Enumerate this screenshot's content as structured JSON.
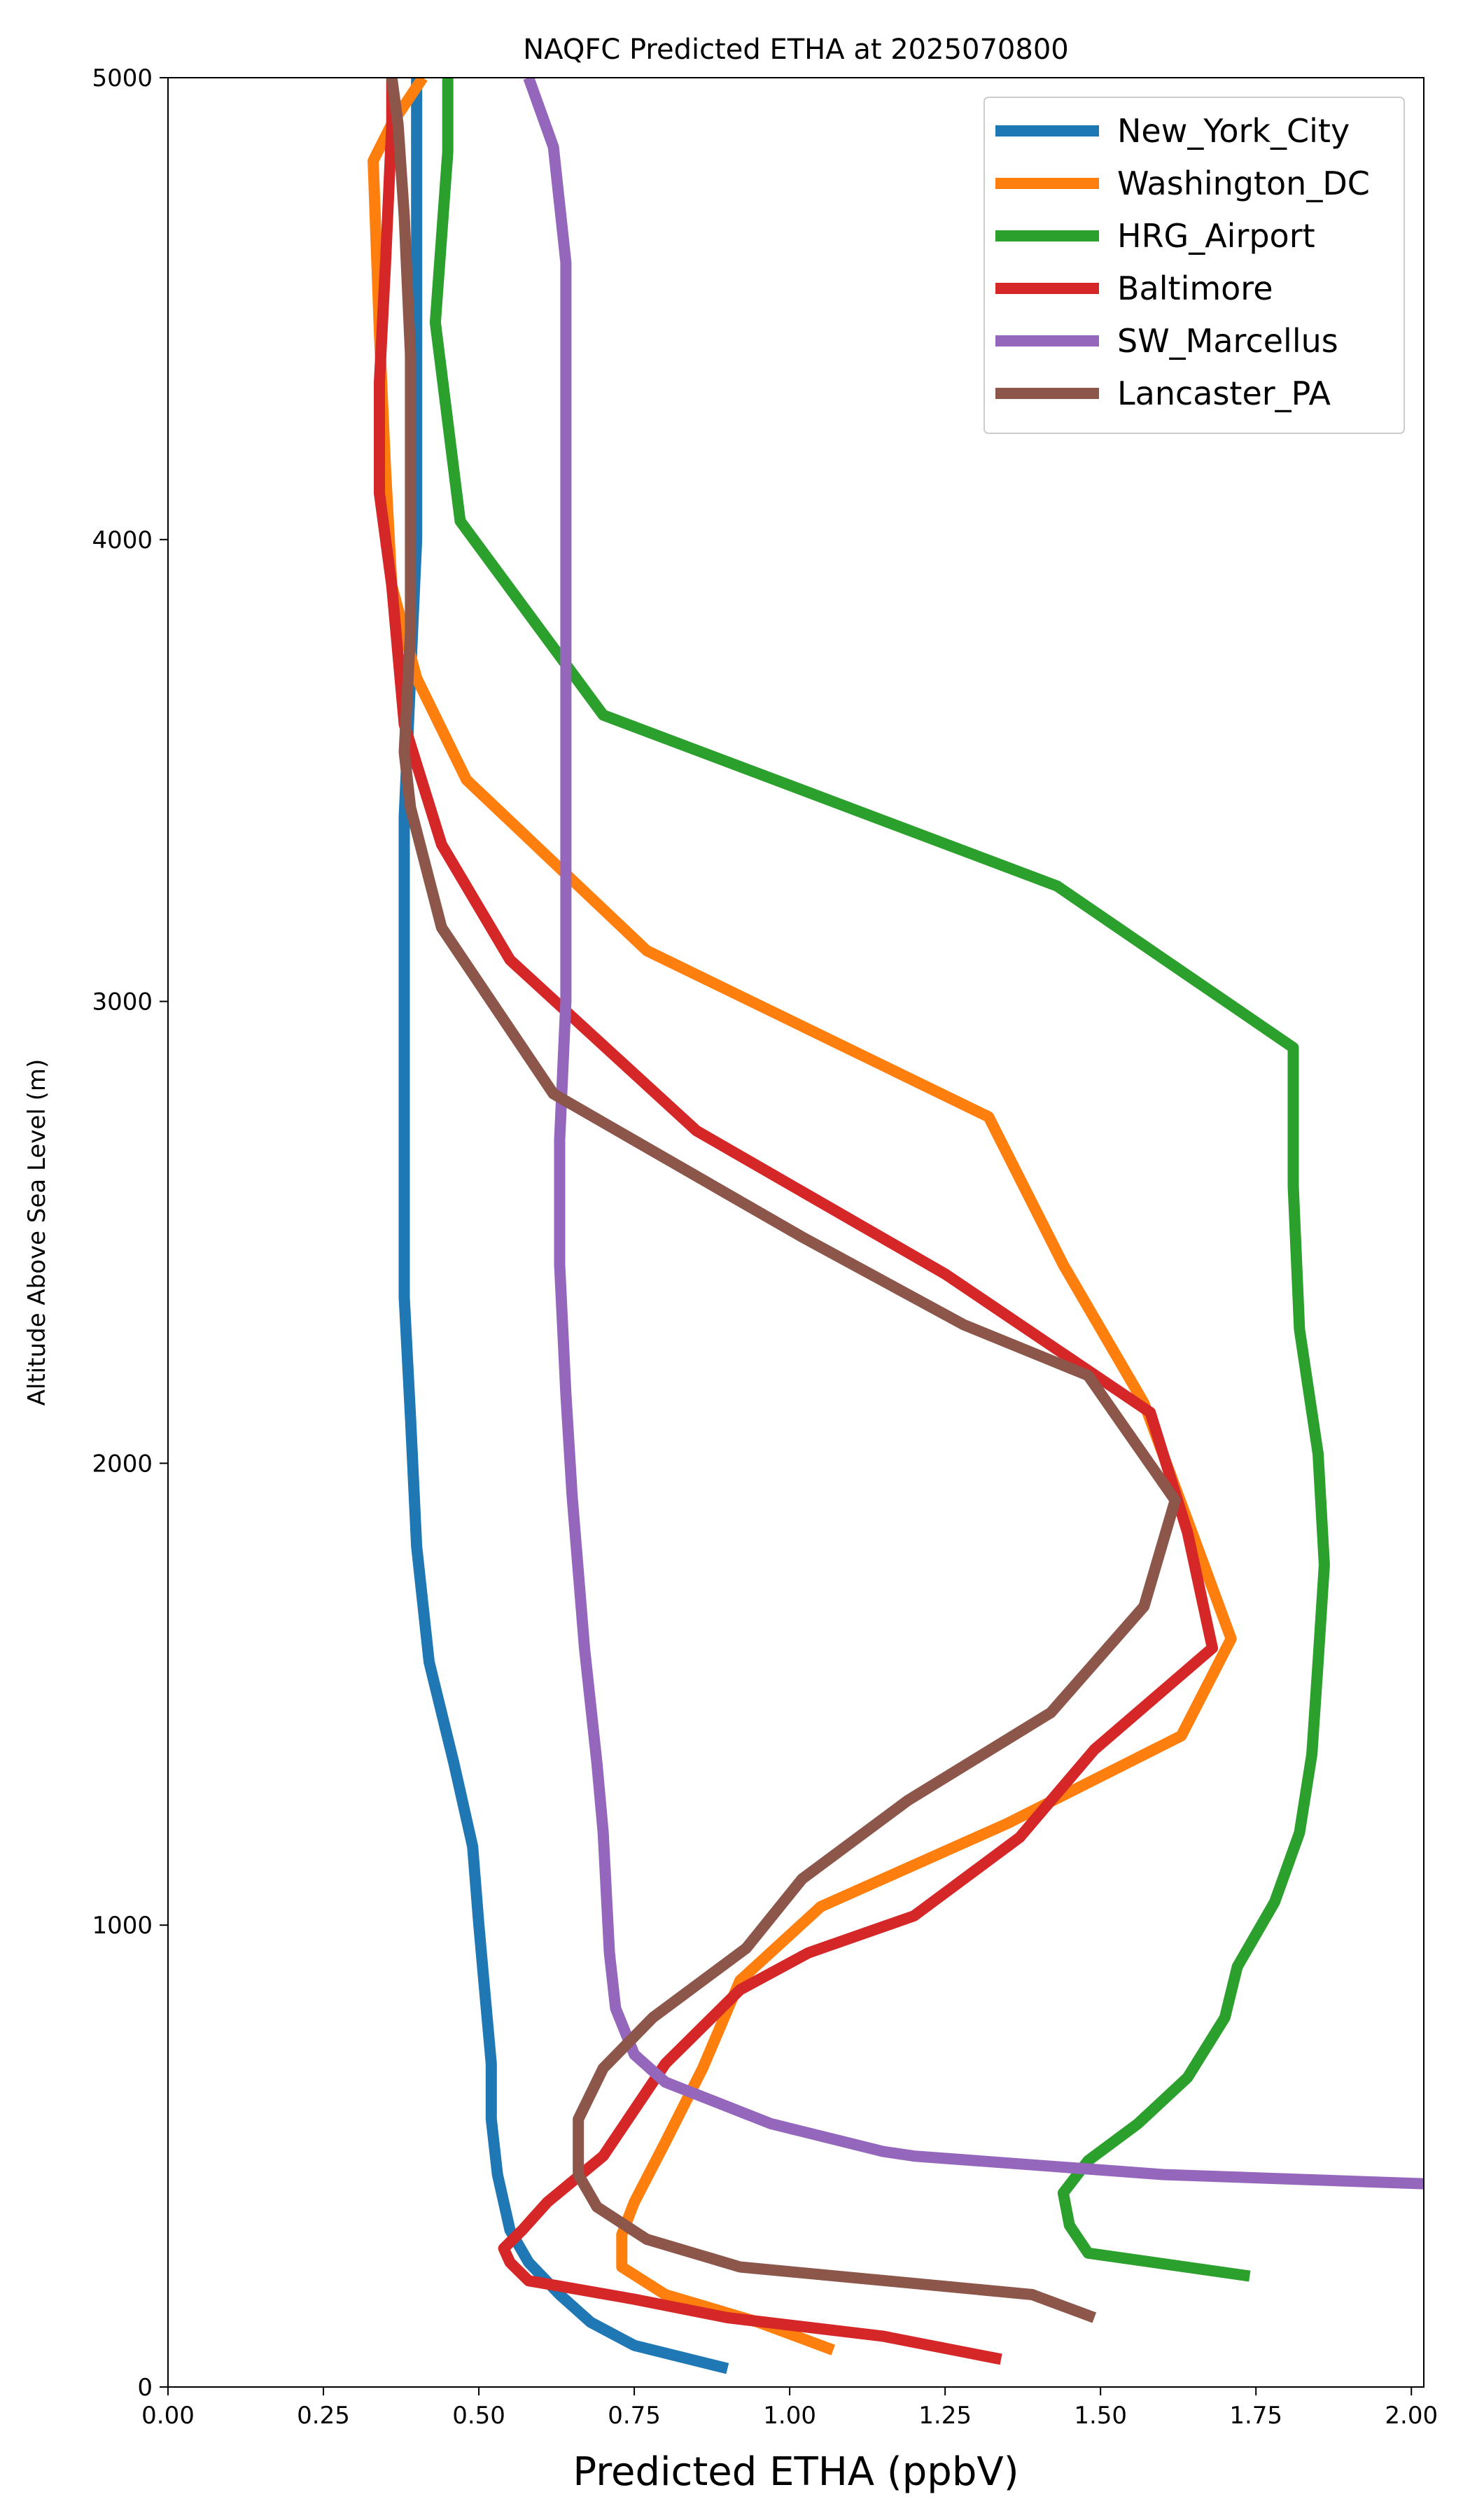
{
  "chart_data": {
    "type": "line",
    "title": "NAQFC Predicted ETHA at 2025070800",
    "xlabel": "Predicted ETHA (ppbV)",
    "ylabel": "Altitude Above Sea Level (m)",
    "xlim": [
      0.0,
      2.02
    ],
    "ylim": [
      0,
      5000
    ],
    "xticks": [
      "0.00",
      "0.25",
      "0.50",
      "0.75",
      "1.00",
      "1.25",
      "1.50",
      "1.75",
      "2.00"
    ],
    "yticks": [
      "0",
      "1000",
      "2000",
      "3000",
      "4000",
      "5000"
    ],
    "grid": false,
    "legend_position": "top-right",
    "series": [
      {
        "name": "New_York_City",
        "color": "#1f77b4",
        "points": [
          [
            0.9,
            40
          ],
          [
            0.75,
            90
          ],
          [
            0.68,
            140
          ],
          [
            0.63,
            200
          ],
          [
            0.58,
            270
          ],
          [
            0.55,
            340
          ],
          [
            0.53,
            460
          ],
          [
            0.52,
            580
          ],
          [
            0.52,
            700
          ],
          [
            0.51,
            850
          ],
          [
            0.5,
            1000
          ],
          [
            0.49,
            1170
          ],
          [
            0.46,
            1350
          ],
          [
            0.42,
            1570
          ],
          [
            0.4,
            1820
          ],
          [
            0.39,
            2100
          ],
          [
            0.38,
            2360
          ],
          [
            0.38,
            2700
          ],
          [
            0.38,
            3050
          ],
          [
            0.38,
            3400
          ],
          [
            0.39,
            3700
          ],
          [
            0.4,
            4000
          ],
          [
            0.4,
            4300
          ],
          [
            0.4,
            4600
          ],
          [
            0.4,
            4850
          ],
          [
            0.4,
            5000
          ]
        ]
      },
      {
        "name": "Washington_DC",
        "color": "#ff7f0e",
        "points": [
          [
            1.07,
            80
          ],
          [
            0.95,
            140
          ],
          [
            0.8,
            200
          ],
          [
            0.73,
            260
          ],
          [
            0.73,
            330
          ],
          [
            0.75,
            400
          ],
          [
            0.8,
            530
          ],
          [
            0.86,
            690
          ],
          [
            0.92,
            880
          ],
          [
            1.05,
            1040
          ],
          [
            1.35,
            1220
          ],
          [
            1.63,
            1410
          ],
          [
            1.71,
            1620
          ],
          [
            1.65,
            1840
          ],
          [
            1.57,
            2130
          ],
          [
            1.44,
            2430
          ],
          [
            1.32,
            2750
          ],
          [
            0.77,
            3110
          ],
          [
            0.48,
            3480
          ],
          [
            0.4,
            3700
          ],
          [
            0.36,
            3900
          ],
          [
            0.35,
            4150
          ],
          [
            0.34,
            4450
          ],
          [
            0.33,
            4820
          ],
          [
            0.36,
            4900
          ],
          [
            0.41,
            5000
          ]
        ]
      },
      {
        "name": "HRG_Airport",
        "color": "#2ca02c",
        "points": [
          [
            1.74,
            240
          ],
          [
            1.48,
            290
          ],
          [
            1.45,
            350
          ],
          [
            1.44,
            420
          ],
          [
            1.48,
            490
          ],
          [
            1.56,
            570
          ],
          [
            1.64,
            670
          ],
          [
            1.7,
            800
          ],
          [
            1.72,
            910
          ],
          [
            1.78,
            1050
          ],
          [
            1.82,
            1200
          ],
          [
            1.84,
            1370
          ],
          [
            1.85,
            1570
          ],
          [
            1.86,
            1780
          ],
          [
            1.85,
            2020
          ],
          [
            1.82,
            2290
          ],
          [
            1.81,
            2600
          ],
          [
            1.81,
            2900
          ],
          [
            1.43,
            3250
          ],
          [
            0.7,
            3620
          ],
          [
            0.47,
            4040
          ],
          [
            0.43,
            4470
          ],
          [
            0.45,
            4840
          ],
          [
            0.45,
            5000
          ]
        ]
      },
      {
        "name": "Baltimore",
        "color": "#d62728",
        "points": [
          [
            1.34,
            60
          ],
          [
            1.15,
            110
          ],
          [
            0.9,
            150
          ],
          [
            0.75,
            190
          ],
          [
            0.58,
            230
          ],
          [
            0.55,
            270
          ],
          [
            0.54,
            300
          ],
          [
            0.57,
            340
          ],
          [
            0.61,
            400
          ],
          [
            0.7,
            500
          ],
          [
            0.75,
            600
          ],
          [
            0.8,
            700
          ],
          [
            0.92,
            860
          ],
          [
            1.03,
            940
          ],
          [
            1.2,
            1020
          ],
          [
            1.37,
            1190
          ],
          [
            1.49,
            1380
          ],
          [
            1.68,
            1600
          ],
          [
            1.64,
            1850
          ],
          [
            1.58,
            2110
          ],
          [
            1.25,
            2410
          ],
          [
            0.85,
            2720
          ],
          [
            0.55,
            3090
          ],
          [
            0.44,
            3340
          ],
          [
            0.38,
            3600
          ],
          [
            0.36,
            3900
          ],
          [
            0.34,
            4100
          ],
          [
            0.34,
            4340
          ],
          [
            0.35,
            4600
          ],
          [
            0.36,
            4900
          ],
          [
            0.36,
            5000
          ]
        ]
      },
      {
        "name": "SW_Marcellus",
        "color": "#9467bd",
        "points": [
          [
            2.02,
            440
          ],
          [
            1.6,
            460
          ],
          [
            1.4,
            480
          ],
          [
            1.2,
            500
          ],
          [
            1.15,
            510
          ],
          [
            0.97,
            570
          ],
          [
            0.8,
            660
          ],
          [
            0.75,
            720
          ],
          [
            0.72,
            820
          ],
          [
            0.71,
            940
          ],
          [
            0.7,
            1200
          ],
          [
            0.69,
            1350
          ],
          [
            0.67,
            1600
          ],
          [
            0.65,
            1930
          ],
          [
            0.64,
            2150
          ],
          [
            0.63,
            2430
          ],
          [
            0.63,
            2700
          ],
          [
            0.64,
            3000
          ],
          [
            0.64,
            3400
          ],
          [
            0.64,
            3700
          ],
          [
            0.64,
            4150
          ],
          [
            0.64,
            4600
          ],
          [
            0.62,
            4850
          ],
          [
            0.58,
            5000
          ]
        ]
      },
      {
        "name": "Lancaster_PA",
        "color": "#8c564b",
        "points": [
          [
            1.49,
            150
          ],
          [
            1.39,
            200
          ],
          [
            0.92,
            260
          ],
          [
            0.77,
            320
          ],
          [
            0.69,
            390
          ],
          [
            0.66,
            460
          ],
          [
            0.66,
            580
          ],
          [
            0.7,
            690
          ],
          [
            0.78,
            800
          ],
          [
            0.93,
            950
          ],
          [
            1.02,
            1100
          ],
          [
            1.19,
            1270
          ],
          [
            1.42,
            1460
          ],
          [
            1.57,
            1690
          ],
          [
            1.62,
            1920
          ],
          [
            1.48,
            2190
          ],
          [
            1.28,
            2300
          ],
          [
            1.02,
            2490
          ],
          [
            0.62,
            2800
          ],
          [
            0.44,
            3160
          ],
          [
            0.39,
            3420
          ],
          [
            0.38,
            3540
          ],
          [
            0.39,
            3800
          ],
          [
            0.39,
            4100
          ],
          [
            0.39,
            4400
          ],
          [
            0.38,
            4700
          ],
          [
            0.37,
            4900
          ],
          [
            0.36,
            5000
          ]
        ]
      }
    ]
  }
}
